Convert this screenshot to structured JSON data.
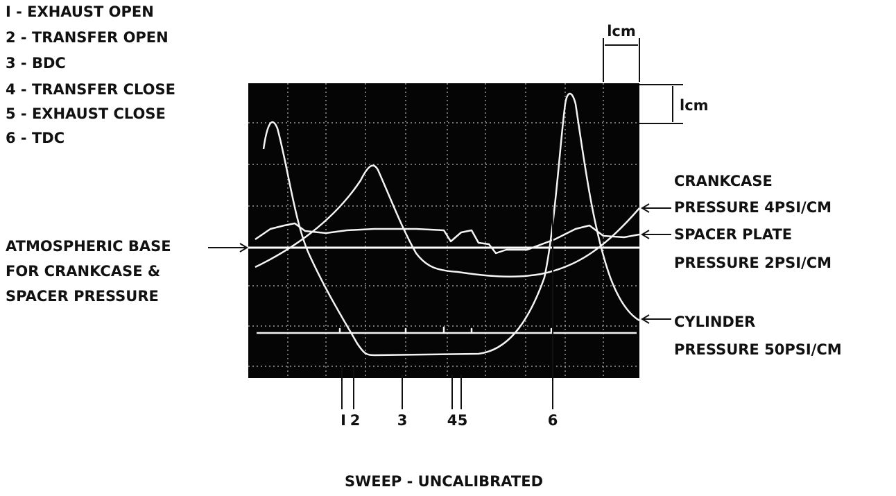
{
  "legend": [
    "I - EXHAUST OPEN",
    "2 - TRANSFER OPEN",
    "3 - BDC",
    "4 - TRANSFER CLOSE",
    "5 - EXHAUST CLOSE",
    "6 - TDC"
  ],
  "scale": {
    "horizontal": "lcm",
    "vertical": "lcm"
  },
  "traces": {
    "crankcase": [
      "CRANKCASE",
      "PRESSURE 4PSI/CM"
    ],
    "spacer": [
      "SPACER PLATE",
      "PRESSURE 2PSI/CM"
    ],
    "cylinder": [
      "CYLINDER",
      "PRESSURE 50PSI/CM"
    ],
    "base": [
      "ATMOSPHERIC BASE",
      "FOR CRANKCASE &",
      "SPACER PRESSURE"
    ]
  },
  "markers": [
    "I",
    "2",
    "3",
    "4",
    "5",
    "6"
  ],
  "caption": "SWEEP - UNCALIBRATED"
}
